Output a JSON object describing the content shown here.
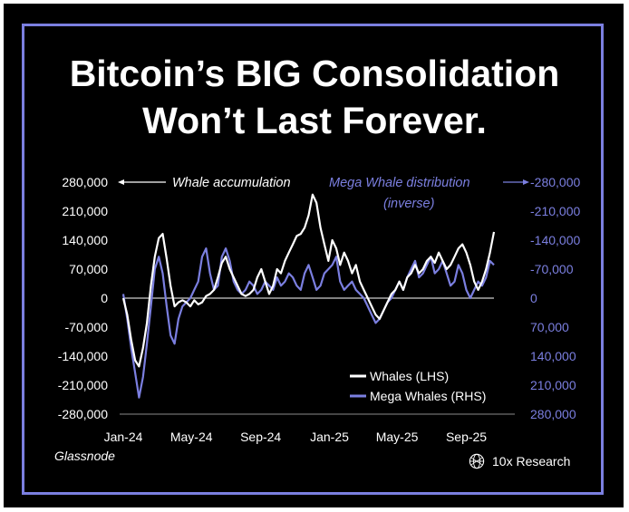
{
  "title_line1": "Bitcoin’s BIG Consolidation",
  "title_line2": "Won’t Last Forever.",
  "source": "Glassnode",
  "brand": "10x Research",
  "brand_icon": "globe-mesh-icon",
  "colors": {
    "background": "#000000",
    "border": "#7b7fe0",
    "whales": "#ffffff",
    "mega_whales": "#7b7fe0"
  },
  "chart_data": {
    "type": "line",
    "annotations": {
      "left": "Whale accumulation",
      "right_line1": "Mega Whale distribution",
      "right_line2": "(inverse)"
    },
    "x_ticks": [
      "Jan-24",
      "May-24",
      "Sep-24",
      "Jan-25",
      "May-25",
      "Sep-25"
    ],
    "y_left": {
      "ticks": [
        280000,
        210000,
        140000,
        70000,
        0,
        -70000,
        -140000,
        -210000,
        -280000
      ],
      "tick_labels": [
        "280,000",
        "210,000",
        "140,000",
        "70,000",
        "0",
        "-70,000",
        "-140,000",
        "-210,000",
        "-280,000"
      ],
      "range": [
        -280000,
        280000
      ]
    },
    "y_right": {
      "inverted": true,
      "tick_labels": [
        "-280,000",
        "-210,000",
        "-140,000",
        "-70,000",
        "0",
        "70,000",
        "140,000",
        "210,000",
        "280,000"
      ]
    },
    "legend": {
      "position": "bottom-right",
      "entries": [
        "Whales (LHS)",
        "Mega Whales (RHS)"
      ]
    },
    "series": [
      {
        "name": "Whales (LHS)",
        "axis": "left",
        "color": "#ffffff",
        "x": [
          "2024-01-01",
          "2024-01-08",
          "2024-01-15",
          "2024-01-22",
          "2024-01-29",
          "2024-02-05",
          "2024-02-12",
          "2024-02-19",
          "2024-02-26",
          "2024-03-04",
          "2024-03-11",
          "2024-03-18",
          "2024-03-25",
          "2024-04-01",
          "2024-04-08",
          "2024-04-15",
          "2024-04-22",
          "2024-04-29",
          "2024-05-06",
          "2024-05-13",
          "2024-05-20",
          "2024-05-27",
          "2024-06-03",
          "2024-06-10",
          "2024-06-17",
          "2024-06-24",
          "2024-07-01",
          "2024-07-08",
          "2024-07-15",
          "2024-07-22",
          "2024-07-29",
          "2024-08-05",
          "2024-08-12",
          "2024-08-19",
          "2024-08-26",
          "2024-09-02",
          "2024-09-09",
          "2024-09-16",
          "2024-09-23",
          "2024-09-30",
          "2024-10-07",
          "2024-10-14",
          "2024-10-21",
          "2024-10-28",
          "2024-11-04",
          "2024-11-11",
          "2024-11-18",
          "2024-11-25",
          "2024-12-02",
          "2024-12-09",
          "2024-12-16",
          "2024-12-23",
          "2024-12-30",
          "2025-01-06",
          "2025-01-13",
          "2025-01-20",
          "2025-01-27",
          "2025-02-03",
          "2025-02-10",
          "2025-02-17",
          "2025-02-24",
          "2025-03-03",
          "2025-03-10",
          "2025-03-17",
          "2025-03-24",
          "2025-03-31",
          "2025-04-07",
          "2025-04-14",
          "2025-04-21",
          "2025-04-28",
          "2025-05-05",
          "2025-05-12",
          "2025-05-19",
          "2025-05-26",
          "2025-06-02",
          "2025-06-09",
          "2025-06-16",
          "2025-06-23",
          "2025-06-30",
          "2025-07-07",
          "2025-07-14",
          "2025-07-21",
          "2025-07-28",
          "2025-08-04",
          "2025-08-11",
          "2025-08-18",
          "2025-08-25",
          "2025-09-01",
          "2025-09-08",
          "2025-09-15",
          "2025-09-22",
          "2025-09-29",
          "2025-10-06",
          "2025-10-13",
          "2025-10-20"
        ],
        "values": [
          0,
          -40000,
          -100000,
          -150000,
          -165000,
          -120000,
          -60000,
          30000,
          100000,
          145000,
          155000,
          95000,
          30000,
          -20000,
          -10000,
          -5000,
          -10000,
          -20000,
          -5000,
          -15000,
          -10000,
          5000,
          10000,
          20000,
          50000,
          85000,
          100000,
          70000,
          50000,
          30000,
          10000,
          5000,
          10000,
          20000,
          50000,
          70000,
          40000,
          10000,
          30000,
          70000,
          60000,
          90000,
          110000,
          130000,
          150000,
          155000,
          170000,
          200000,
          250000,
          230000,
          170000,
          130000,
          90000,
          140000,
          120000,
          80000,
          110000,
          90000,
          60000,
          80000,
          40000,
          20000,
          0,
          -20000,
          -40000,
          -50000,
          -30000,
          -10000,
          10000,
          20000,
          40000,
          20000,
          50000,
          60000,
          80000,
          60000,
          70000,
          90000,
          100000,
          85000,
          110000,
          90000,
          70000,
          80000,
          100000,
          120000,
          130000,
          110000,
          80000,
          40000,
          20000,
          40000,
          70000,
          110000,
          160000
        ]
      },
      {
        "name": "Mega Whales (RHS)",
        "axis": "right",
        "inverted": true,
        "color": "#7b7fe0",
        "x": [
          "2024-01-01",
          "2024-01-08",
          "2024-01-15",
          "2024-01-22",
          "2024-01-29",
          "2024-02-05",
          "2024-02-12",
          "2024-02-19",
          "2024-02-26",
          "2024-03-04",
          "2024-03-11",
          "2024-03-18",
          "2024-03-25",
          "2024-04-01",
          "2024-04-08",
          "2024-04-15",
          "2024-04-22",
          "2024-04-29",
          "2024-05-06",
          "2024-05-13",
          "2024-05-20",
          "2024-05-27",
          "2024-06-03",
          "2024-06-10",
          "2024-06-17",
          "2024-06-24",
          "2024-07-01",
          "2024-07-08",
          "2024-07-15",
          "2024-07-22",
          "2024-07-29",
          "2024-08-05",
          "2024-08-12",
          "2024-08-19",
          "2024-08-26",
          "2024-09-02",
          "2024-09-09",
          "2024-09-16",
          "2024-09-23",
          "2024-09-30",
          "2024-10-07",
          "2024-10-14",
          "2024-10-21",
          "2024-10-28",
          "2024-11-04",
          "2024-11-11",
          "2024-11-18",
          "2024-11-25",
          "2024-12-02",
          "2024-12-09",
          "2024-12-16",
          "2024-12-23",
          "2024-12-30",
          "2025-01-06",
          "2025-01-13",
          "2025-01-20",
          "2025-01-27",
          "2025-02-03",
          "2025-02-10",
          "2025-02-17",
          "2025-02-24",
          "2025-03-03",
          "2025-03-10",
          "2025-03-17",
          "2025-03-24",
          "2025-03-31",
          "2025-04-07",
          "2025-04-14",
          "2025-04-21",
          "2025-04-28",
          "2025-05-05",
          "2025-05-12",
          "2025-05-19",
          "2025-05-26",
          "2025-06-02",
          "2025-06-09",
          "2025-06-16",
          "2025-06-23",
          "2025-06-30",
          "2025-07-07",
          "2025-07-14",
          "2025-07-21",
          "2025-07-28",
          "2025-08-04",
          "2025-08-11",
          "2025-08-18",
          "2025-08-25",
          "2025-09-01",
          "2025-09-08",
          "2025-09-15",
          "2025-09-22",
          "2025-09-29",
          "2025-10-06",
          "2025-10-13",
          "2025-10-20"
        ],
        "values": [
          -10000,
          50000,
          120000,
          180000,
          240000,
          190000,
          110000,
          20000,
          -70000,
          -100000,
          -60000,
          20000,
          90000,
          110000,
          50000,
          20000,
          10000,
          0,
          -20000,
          -40000,
          -100000,
          -120000,
          -60000,
          -20000,
          -30000,
          -100000,
          -120000,
          -90000,
          -40000,
          -20000,
          -10000,
          -20000,
          -40000,
          -30000,
          -10000,
          -20000,
          -40000,
          -30000,
          -20000,
          -50000,
          -30000,
          -40000,
          -60000,
          -50000,
          -30000,
          -20000,
          -60000,
          -80000,
          -50000,
          -20000,
          -30000,
          -60000,
          -70000,
          -80000,
          -100000,
          -40000,
          -20000,
          -30000,
          -40000,
          -20000,
          -10000,
          0,
          20000,
          40000,
          60000,
          50000,
          30000,
          10000,
          0,
          -20000,
          -40000,
          -20000,
          -50000,
          -70000,
          -90000,
          -50000,
          -60000,
          -80000,
          -100000,
          -60000,
          -70000,
          -90000,
          -60000,
          -30000,
          -40000,
          -80000,
          -60000,
          -20000,
          0,
          -20000,
          -40000,
          -30000,
          -50000,
          -90000,
          -80000
        ]
      }
    ]
  }
}
